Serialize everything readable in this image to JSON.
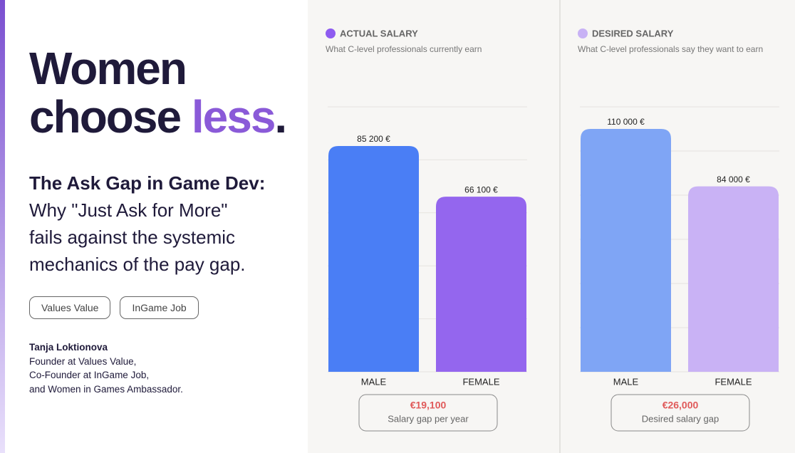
{
  "header": {
    "headline": [
      "Women",
      "choose",
      "less",
      "."
    ],
    "subtitle_bold": "The Ask Gap in Game Dev:",
    "subtitle_lines": [
      "Why \"Just Ask for More\"",
      "fails against the systemic",
      "mechanics of the pay gap."
    ]
  },
  "tags": [
    "Values Value",
    "InGame Job"
  ],
  "author": {
    "name": "Tanja Loktionova",
    "lines": [
      "Founder at Values Value,",
      "Co-Founder at InGame Job,",
      "and Women in Games Ambassador."
    ]
  },
  "chart_data": [
    {
      "type": "bar",
      "title": "ACTUAL SALARY",
      "subtitle": "What C-level professionals currently earn",
      "legend_color": "#8e5cf0",
      "categories": [
        "MALE",
        "FEMALE"
      ],
      "values": [
        85200,
        66100
      ],
      "value_labels": [
        "85 200 €",
        "66 100 €"
      ],
      "colors": [
        "#4a7ef5",
        "#9466ee"
      ],
      "ylim": [
        0,
        100000
      ],
      "yticks": [
        0,
        20000,
        40000,
        60000,
        80000,
        100000
      ],
      "grid": true,
      "annotation": {
        "label": "€19,100",
        "caption": "Salary gap per year"
      }
    },
    {
      "type": "bar",
      "title": "DESIRED SALARY",
      "subtitle": "What C-level professionals say they want to earn",
      "legend_color": "#c8b2f5",
      "categories": [
        "MALE",
        "FEMALE"
      ],
      "values": [
        110000,
        84000
      ],
      "value_labels": [
        "110 000 €",
        "84 000 €"
      ],
      "colors": [
        "#7fa5f5",
        "#c9b2f5"
      ],
      "ylim": [
        0,
        120000
      ],
      "yticks": [
        0,
        20000,
        40000,
        60000,
        80000,
        100000,
        120000
      ],
      "grid": true,
      "annotation": {
        "label": "€26,000",
        "caption": "Desired salary gap"
      }
    }
  ]
}
